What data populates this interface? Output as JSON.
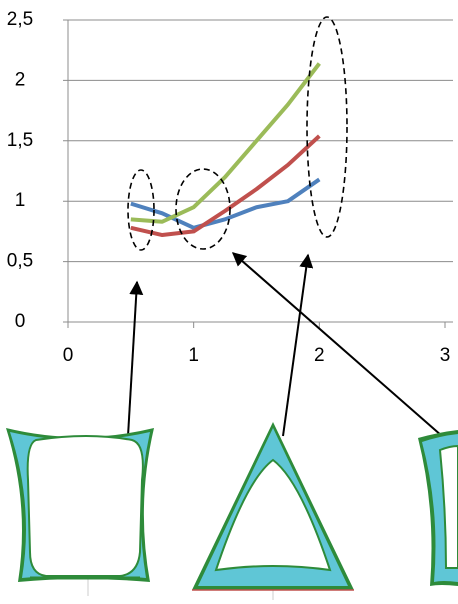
{
  "chart_data": {
    "type": "line",
    "x": [
      0.5,
      0.75,
      1.0,
      1.25,
      1.5,
      1.75,
      2.0
    ],
    "series": [
      {
        "color": "#4f81bd",
        "values": [
          0.98,
          0.9,
          0.78,
          0.85,
          0.95,
          1.0,
          1.18
        ]
      },
      {
        "color": "#c0504d",
        "values": [
          0.78,
          0.72,
          0.75,
          0.92,
          1.1,
          1.3,
          1.54
        ]
      },
      {
        "color": "#9bbb59",
        "values": [
          0.85,
          0.83,
          0.95,
          1.2,
          1.5,
          1.8,
          2.14
        ]
      }
    ],
    "xlim": [
      0,
      3
    ],
    "xticks": [
      0,
      1,
      2,
      3
    ],
    "ylim": [
      0,
      2.5
    ],
    "yticks": [
      0,
      {
        "value": 0.5,
        "label": "0,5"
      },
      1,
      {
        "value": 1.5,
        "label": "1,5"
      },
      2,
      {
        "value": 2.5,
        "label": "2,5"
      }
    ],
    "grid": true
  }
}
